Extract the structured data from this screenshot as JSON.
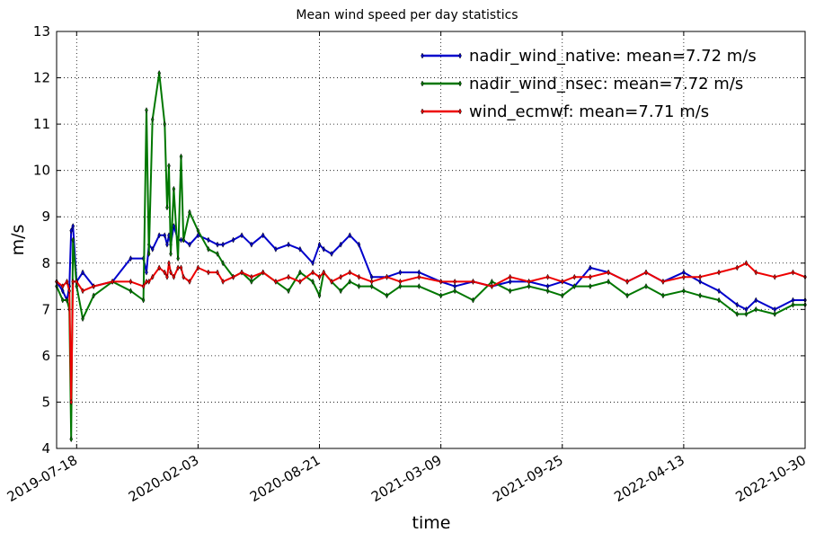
{
  "chart_data": {
    "type": "line",
    "title": "Mean wind speed per day statistics",
    "xlabel": "time",
    "ylabel": "m/s",
    "ylim": [
      4,
      13
    ],
    "xlim": [
      "2019-06-15",
      "2022-10-30"
    ],
    "grid": true,
    "legend_position": "top-right",
    "y_ticks": [
      "4",
      "5",
      "6",
      "7",
      "8",
      "9",
      "10",
      "11",
      "12",
      "13"
    ],
    "x_ticks": [
      "2019-07-18",
      "2020-02-03",
      "2020-08-21",
      "2021-03-09",
      "2021-09-25",
      "2022-04-13",
      "2022-10-30"
    ],
    "x": [
      "2019-06-15",
      "2019-06-25",
      "2019-07-02",
      "2019-07-06",
      "2019-07-09",
      "2019-07-12",
      "2019-07-18",
      "2019-07-28",
      "2019-08-15",
      "2019-09-15",
      "2019-10-15",
      "2019-11-05",
      "2019-11-10",
      "2019-11-14",
      "2019-11-20",
      "2019-12-01",
      "2019-12-10",
      "2019-12-14",
      "2019-12-17",
      "2019-12-20",
      "2019-12-25",
      "2020-01-01",
      "2020-01-06",
      "2020-01-10",
      "2020-01-20",
      "2020-02-03",
      "2020-02-20",
      "2020-03-06",
      "2020-03-15",
      "2020-04-01",
      "2020-04-15",
      "2020-05-01",
      "2020-05-20",
      "2020-06-10",
      "2020-07-01",
      "2020-07-20",
      "2020-08-10",
      "2020-08-21",
      "2020-08-28",
      "2020-09-10",
      "2020-09-25",
      "2020-10-10",
      "2020-10-25",
      "2020-11-15",
      "2020-12-10",
      "2021-01-01",
      "2021-02-01",
      "2021-03-09",
      "2021-04-01",
      "2021-05-01",
      "2021-06-01",
      "2021-07-01",
      "2021-08-01",
      "2021-09-01",
      "2021-09-25",
      "2021-10-15",
      "2021-11-10",
      "2021-12-10",
      "2022-01-10",
      "2022-02-10",
      "2022-03-10",
      "2022-04-13",
      "2022-05-10",
      "2022-06-10",
      "2022-07-10",
      "2022-07-25",
      "2022-08-10",
      "2022-09-10",
      "2022-10-10",
      "2022-10-30"
    ],
    "series": [
      {
        "name": "nadir_wind_native: mean=7.72 m/s",
        "color": "#0000cc",
        "values": [
          7.6,
          7.4,
          7.2,
          7.5,
          8.7,
          8.8,
          7.6,
          7.8,
          7.5,
          7.6,
          8.1,
          8.1,
          7.8,
          8.4,
          8.3,
          8.6,
          8.6,
          8.4,
          8.6,
          8.4,
          8.8,
          8.5,
          8.5,
          8.5,
          8.4,
          8.6,
          8.5,
          8.4,
          8.4,
          8.5,
          8.6,
          8.4,
          8.6,
          8.3,
          8.4,
          8.3,
          8.0,
          8.4,
          8.3,
          8.2,
          8.4,
          8.6,
          8.4,
          7.7,
          7.7,
          7.8,
          7.8,
          7.6,
          7.5,
          7.6,
          7.5,
          7.6,
          7.6,
          7.5,
          7.6,
          7.5,
          7.9,
          7.8,
          7.6,
          7.8,
          7.6,
          7.8,
          7.6,
          7.4,
          7.1,
          7.0,
          7.2,
          7.0,
          7.2,
          7.2
        ]
      },
      {
        "name": "nadir_wind_nsec: mean=7.72 m/s",
        "color": "#007700",
        "values": [
          7.5,
          7.2,
          7.2,
          7.0,
          4.2,
          8.5,
          7.5,
          6.8,
          7.3,
          7.6,
          7.4,
          7.2,
          11.3,
          8.2,
          11.1,
          12.1,
          11.0,
          9.2,
          10.1,
          8.2,
          9.6,
          8.1,
          10.3,
          8.5,
          9.1,
          8.7,
          8.3,
          8.2,
          8.0,
          7.7,
          7.8,
          7.6,
          7.8,
          7.6,
          7.4,
          7.8,
          7.6,
          7.3,
          7.8,
          7.6,
          7.4,
          7.6,
          7.5,
          7.5,
          7.3,
          7.5,
          7.5,
          7.3,
          7.4,
          7.2,
          7.6,
          7.4,
          7.5,
          7.4,
          7.3,
          7.5,
          7.5,
          7.6,
          7.3,
          7.5,
          7.3,
          7.4,
          7.3,
          7.2,
          6.9,
          6.9,
          7.0,
          6.9,
          7.1,
          7.1
        ]
      },
      {
        "name": "wind_ecmwf: mean=7.71 m/s",
        "color": "#ee0000",
        "values": [
          7.6,
          7.5,
          7.6,
          7.4,
          5.0,
          7.6,
          7.6,
          7.4,
          7.5,
          7.6,
          7.6,
          7.5,
          7.6,
          7.6,
          7.7,
          7.9,
          7.8,
          7.7,
          8.0,
          7.8,
          7.7,
          7.9,
          7.9,
          7.7,
          7.6,
          7.9,
          7.8,
          7.8,
          7.6,
          7.7,
          7.8,
          7.7,
          7.8,
          7.6,
          7.7,
          7.6,
          7.8,
          7.7,
          7.8,
          7.6,
          7.7,
          7.8,
          7.7,
          7.6,
          7.7,
          7.6,
          7.7,
          7.6,
          7.6,
          7.6,
          7.5,
          7.7,
          7.6,
          7.7,
          7.6,
          7.7,
          7.7,
          7.8,
          7.6,
          7.8,
          7.6,
          7.7,
          7.7,
          7.8,
          7.9,
          8.0,
          7.8,
          7.7,
          7.8,
          7.7
        ]
      }
    ]
  }
}
